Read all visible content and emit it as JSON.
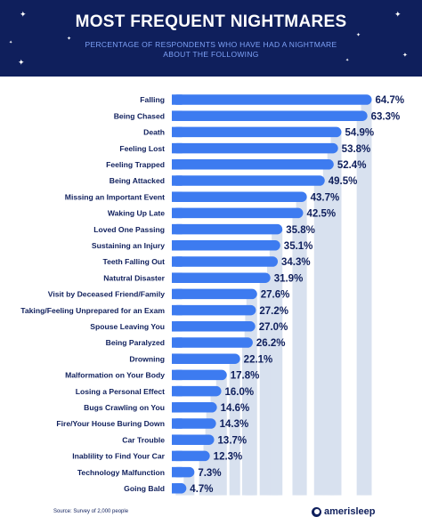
{
  "header": {
    "title": "MOST FREQUENT NIGHTMARES",
    "subtitle": "PERCENTAGE OF RESPONDENTS WHO HAVE HAD A NIGHTMARE ABOUT THE FOLLOWING"
  },
  "colors": {
    "header_bg": "#0f1f5c",
    "bar": "#3d7bf0",
    "track": "#d8e1ef",
    "label_text": "#0f1f5c",
    "subtitle_text": "#7ea2f7"
  },
  "chart_data": {
    "type": "bar",
    "orientation": "horizontal",
    "title": "MOST FREQUENT NIGHTMARES",
    "subtitle": "PERCENTAGE OF RESPONDENTS WHO HAVE HAD A NIGHTMARE ABOUT THE FOLLOWING",
    "value_suffix": "%",
    "xlim": [
      0,
      70
    ],
    "grid": false,
    "categories": [
      "Falling",
      "Being Chased",
      "Death",
      "Feeling Lost",
      "Feeling Trapped",
      "Being Attacked",
      "Missing an Important Event",
      "Waking Up Late",
      "Loved One Passing",
      "Sustaining an Injury",
      "Teeth Falling Out",
      "Natutral Disaster",
      "Visit by Deceased Friend/Family",
      "Taking/Feeling Unprepared for an Exam",
      "Spouse Leaving You",
      "Being Paralyzed",
      "Drowning",
      "Malformation on Your Body",
      "Losing a Personal Effect",
      "Bugs Crawling on You",
      "Fire/Your House Buring Down",
      "Car Trouble",
      "Inablility to Find Your Car",
      "Technology Malfunction",
      "Going Bald"
    ],
    "values": [
      64.7,
      63.3,
      54.9,
      53.8,
      52.4,
      49.5,
      43.7,
      42.5,
      35.8,
      35.1,
      34.3,
      31.9,
      27.6,
      27.2,
      27.0,
      26.2,
      22.1,
      17.8,
      16.0,
      14.6,
      14.3,
      13.7,
      12.3,
      7.3,
      4.7
    ]
  },
  "footer": {
    "source": "Source: Survey of 2,000 people",
    "brand": "amerisleep",
    "brand_icon": "amerisleep-logo-icon"
  }
}
